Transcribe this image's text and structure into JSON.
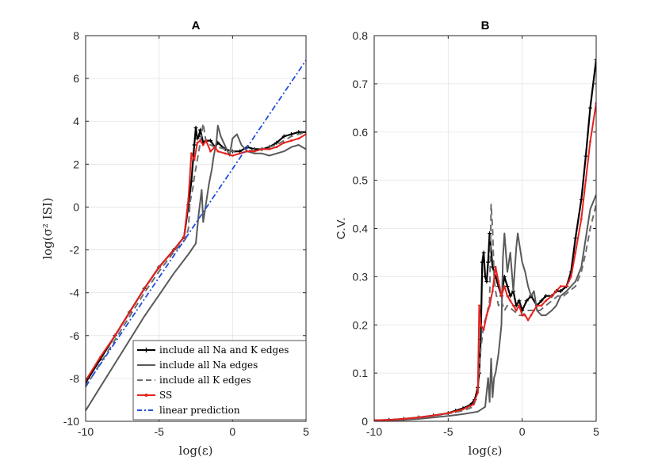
{
  "chart_data": [
    {
      "type": "line",
      "panel": "A",
      "title": "A",
      "xlabel": "log(ε)",
      "ylabel": "log(σ² ISI)",
      "xlim": [
        -10,
        5
      ],
      "ylim": [
        -10,
        8
      ],
      "xticks": [
        "-10",
        "-5",
        "0",
        "5"
      ],
      "yticks": [
        "-10",
        "-8",
        "-6",
        "-4",
        "-2",
        "0",
        "2",
        "4",
        "6",
        "8"
      ],
      "grid": true,
      "legend_position": "bottom-right",
      "series": [
        {
          "name": "include all Na and K edges",
          "color": "#000000",
          "style": "solid-plus",
          "x": [
            -10,
            -9,
            -8,
            -7,
            -6,
            -5,
            -4,
            -3.3,
            -3.0,
            -2.8,
            -2.6,
            -2.5,
            -2.4,
            -2.3,
            -2.2,
            -2.0,
            -1.8,
            -1.5,
            -1.2,
            -1.0,
            -0.5,
            0,
            0.5,
            1,
            1.5,
            2,
            2.5,
            3,
            3.5,
            4,
            4.5,
            5
          ],
          "y": [
            -8.2,
            -7.1,
            -6.0,
            -4.9,
            -3.8,
            -2.8,
            -2.0,
            -1.4,
            0.1,
            1.2,
            2.9,
            3.7,
            3.2,
            3.3,
            3.6,
            3.0,
            3.1,
            3.1,
            2.8,
            3.0,
            2.7,
            2.6,
            2.6,
            2.8,
            2.7,
            2.7,
            2.8,
            3.0,
            3.3,
            3.4,
            3.5,
            3.5
          ]
        },
        {
          "name": "include all Na edges",
          "color": "#5a5a5a",
          "style": "solid",
          "x": [
            -10,
            -9,
            -8,
            -7,
            -6,
            -5,
            -4,
            -3,
            -2.5,
            -2.3,
            -2.1,
            -2.0,
            -1.8,
            -1.6,
            -1.4,
            -1.3,
            -1.1,
            -1.0,
            -0.8,
            -0.6,
            -0.4,
            -0.2,
            0,
            0.3,
            0.6,
            1,
            1.5,
            2,
            2.5,
            3,
            3.5,
            4,
            4.5,
            5
          ],
          "y": [
            -9.5,
            -8.4,
            -7.3,
            -6.2,
            -5.1,
            -4.1,
            -3.1,
            -2.2,
            -1.7,
            -0.3,
            0.8,
            -0.7,
            0.2,
            1.1,
            1.8,
            2.3,
            3.0,
            3.8,
            3.3,
            3.0,
            2.7,
            2.4,
            3.2,
            3.4,
            2.9,
            2.6,
            2.5,
            2.5,
            2.4,
            2.5,
            2.6,
            2.8,
            2.9,
            2.7
          ]
        },
        {
          "name": "include all K edges",
          "color": "#6e6e6e",
          "style": "dashed",
          "x": [
            -10,
            -9,
            -8,
            -7,
            -6,
            -5,
            -4,
            -3.2,
            -3.0,
            -2.9,
            -2.7,
            -2.6,
            -2.4,
            -2.2,
            -2.0,
            -1.8,
            -1.5,
            -1.2,
            -1.0,
            -0.5,
            0,
            0.5,
            1,
            1.5,
            2,
            2.5,
            3,
            3.5,
            4,
            4.5,
            5
          ],
          "y": [
            -8.4,
            -7.3,
            -6.2,
            -5.1,
            -4.0,
            -3.0,
            -2.1,
            -1.5,
            -1.0,
            0.2,
            0.9,
            1.4,
            2.2,
            3.0,
            3.9,
            3.0,
            2.9,
            2.8,
            2.8,
            2.7,
            2.6,
            2.5,
            2.6,
            2.7,
            2.7,
            2.8,
            2.9,
            3.1,
            3.3,
            3.4,
            3.5
          ]
        },
        {
          "name": "SS",
          "color": "#e8221e",
          "style": "solid-dot",
          "x": [
            -10,
            -9,
            -8,
            -7,
            -6,
            -5,
            -4,
            -3.3,
            -3.0,
            -2.8,
            -2.6,
            -2.4,
            -2.2,
            -2.0,
            -1.8,
            -1.5,
            -1.2,
            -1.0,
            -0.5,
            0,
            0.5,
            1,
            1.5,
            2,
            2.5,
            3,
            3.5,
            4,
            4.5,
            5
          ],
          "y": [
            -8.1,
            -7.0,
            -6.0,
            -4.9,
            -3.8,
            -2.8,
            -2.0,
            -1.4,
            0.4,
            2.5,
            2.2,
            3.0,
            3.1,
            2.9,
            3.1,
            2.6,
            2.8,
            2.6,
            2.5,
            2.4,
            2.5,
            2.6,
            2.6,
            2.7,
            2.7,
            2.8,
            3.0,
            3.1,
            3.2,
            3.4
          ]
        },
        {
          "name": "linear prediction",
          "color": "#1f4fe0",
          "style": "dashdot",
          "x": [
            -10,
            5
          ],
          "y": [
            -8.35,
            6.85
          ]
        }
      ]
    },
    {
      "type": "line",
      "panel": "B",
      "title": "B",
      "xlabel": "log(ε)",
      "ylabel": "C.V.",
      "xlim": [
        -10,
        5
      ],
      "ylim": [
        0,
        0.8
      ],
      "xticks": [
        "-10",
        "-5",
        "0",
        "5"
      ],
      "yticks": [
        "0",
        "0.1",
        "0.2",
        "0.3",
        "0.4",
        "0.5",
        "0.6",
        "0.7",
        "0.8"
      ],
      "grid": true,
      "series": [
        {
          "name": "include all Na and K edges",
          "color": "#000000",
          "style": "solid-plus",
          "x": [
            -10,
            -9,
            -8,
            -7,
            -6,
            -5,
            -4.5,
            -4,
            -3.5,
            -3.2,
            -3.0,
            -2.9,
            -2.8,
            -2.7,
            -2.6,
            -2.5,
            -2.4,
            -2.3,
            -2.2,
            -2.0,
            -1.8,
            -1.6,
            -1.4,
            -1.2,
            -1.0,
            -0.8,
            -0.6,
            -0.4,
            -0.2,
            0,
            0.3,
            0.6,
            1,
            1.3,
            1.6,
            2,
            2.3,
            2.6,
            3,
            3.3,
            3.6,
            4,
            4.3,
            4.6,
            5
          ],
          "y": [
            0.002,
            0.003,
            0.005,
            0.008,
            0.012,
            0.017,
            0.022,
            0.027,
            0.034,
            0.045,
            0.07,
            0.1,
            0.17,
            0.33,
            0.35,
            0.3,
            0.29,
            0.33,
            0.39,
            0.32,
            0.3,
            0.28,
            0.26,
            0.3,
            0.28,
            0.26,
            0.27,
            0.24,
            0.25,
            0.23,
            0.25,
            0.26,
            0.24,
            0.25,
            0.26,
            0.26,
            0.27,
            0.27,
            0.28,
            0.31,
            0.38,
            0.46,
            0.55,
            0.65,
            0.75
          ]
        },
        {
          "name": "include all Na edges",
          "color": "#5a5a5a",
          "style": "solid",
          "x": [
            -10,
            -9,
            -8,
            -7,
            -6,
            -5,
            -4,
            -3.0,
            -2.5,
            -2.3,
            -2.2,
            -2.1,
            -2.0,
            -1.9,
            -1.8,
            -1.6,
            -1.5,
            -1.4,
            -1.3,
            -1.2,
            -1.0,
            -0.8,
            -0.6,
            -0.4,
            -0.3,
            -0.2,
            0,
            0.2,
            0.4,
            0.6,
            0.8,
            1,
            1.3,
            1.6,
            2,
            2.3,
            2.6,
            3,
            3.3,
            3.6,
            4,
            4.3,
            4.6,
            5
          ],
          "y": [
            0.001,
            0.002,
            0.003,
            0.005,
            0.008,
            0.011,
            0.015,
            0.02,
            0.03,
            0.09,
            0.04,
            0.13,
            0.05,
            0.09,
            0.1,
            0.14,
            0.17,
            0.2,
            0.34,
            0.39,
            0.31,
            0.35,
            0.27,
            0.36,
            0.39,
            0.37,
            0.33,
            0.31,
            0.28,
            0.26,
            0.27,
            0.23,
            0.22,
            0.22,
            0.23,
            0.24,
            0.26,
            0.27,
            0.28,
            0.29,
            0.32,
            0.38,
            0.44,
            0.47
          ]
        },
        {
          "name": "include all K edges",
          "color": "#6e6e6e",
          "style": "dashed",
          "x": [
            -10,
            -9,
            -8,
            -7,
            -6,
            -5,
            -4,
            -3.3,
            -3.0,
            -2.8,
            -2.6,
            -2.4,
            -2.2,
            -2.1,
            -2.0,
            -1.9,
            -1.8,
            -1.6,
            -1.4,
            -1.2,
            -1.0,
            -0.6,
            -0.2,
            0,
            0.4,
            0.8,
            1.2,
            1.6,
            2,
            2.4,
            2.8,
            3.2,
            3.6,
            4,
            4.3,
            4.6,
            5
          ],
          "y": [
            0.001,
            0.002,
            0.004,
            0.007,
            0.011,
            0.016,
            0.022,
            0.03,
            0.06,
            0.15,
            0.2,
            0.22,
            0.25,
            0.45,
            0.4,
            0.3,
            0.27,
            0.24,
            0.25,
            0.23,
            0.24,
            0.23,
            0.22,
            0.22,
            0.23,
            0.23,
            0.23,
            0.24,
            0.25,
            0.26,
            0.26,
            0.27,
            0.28,
            0.31,
            0.35,
            0.4,
            0.45
          ]
        },
        {
          "name": "SS",
          "color": "#e8221e",
          "style": "solid-dot",
          "x": [
            -10,
            -9,
            -8,
            -7,
            -6,
            -5,
            -4,
            -3.3,
            -3.0,
            -2.9,
            -2.8,
            -2.6,
            -2.4,
            -2.2,
            -2.0,
            -1.8,
            -1.6,
            -1.4,
            -1.2,
            -1.0,
            -0.8,
            -0.6,
            -0.4,
            -0.2,
            0,
            0.2,
            0.4,
            0.6,
            0.8,
            1,
            1.3,
            1.6,
            2,
            2.3,
            2.6,
            3,
            3.3,
            3.6,
            4,
            4.3,
            4.6,
            5
          ],
          "y": [
            0.002,
            0.003,
            0.005,
            0.008,
            0.012,
            0.017,
            0.025,
            0.035,
            0.06,
            0.24,
            0.2,
            0.19,
            0.22,
            0.24,
            0.27,
            0.32,
            0.29,
            0.26,
            0.28,
            0.26,
            0.25,
            0.24,
            0.23,
            0.24,
            0.22,
            0.22,
            0.21,
            0.22,
            0.23,
            0.24,
            0.24,
            0.25,
            0.26,
            0.27,
            0.28,
            0.28,
            0.3,
            0.35,
            0.42,
            0.5,
            0.58,
            0.66
          ]
        }
      ]
    }
  ]
}
